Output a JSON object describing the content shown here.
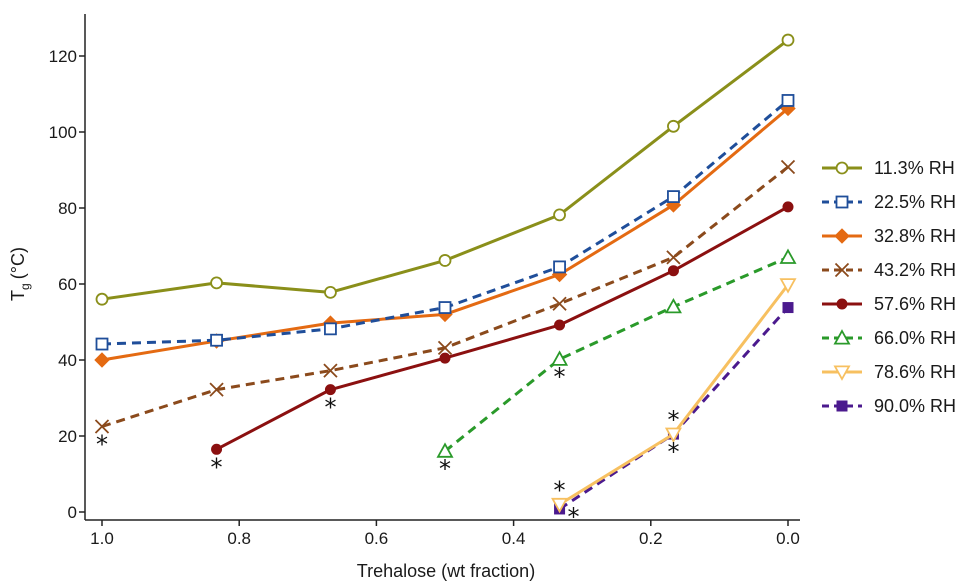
{
  "chart_data": {
    "type": "line",
    "xlabel": "Trehalose (wt fraction)",
    "ylabel": "T",
    "ylabel_subscript": "g",
    "ylabel_units": "(°C)",
    "xlim": [
      1.0,
      0.0
    ],
    "ylim": [
      0,
      130
    ],
    "x_ticks": [
      1.0,
      0.8,
      0.6,
      0.4,
      0.2,
      0.0
    ],
    "x_tick_labels": [
      "1.0",
      "0.8",
      "0.6",
      "0.4",
      "0.2",
      "0.0"
    ],
    "y_ticks": [
      0,
      20,
      40,
      60,
      80,
      100,
      120
    ],
    "y_tick_labels": [
      "0",
      "20",
      "40",
      "60",
      "80",
      "100",
      "120"
    ],
    "grid": false,
    "legend_position": "right",
    "series": [
      {
        "name": "11.3% RH",
        "color": "#8a8f1a",
        "dashed": false,
        "marker": "circle-open",
        "x": [
          1.0,
          0.833,
          0.667,
          0.5,
          0.333,
          0.167,
          0.0
        ],
        "y": [
          56,
          60.3,
          57.8,
          66.2,
          78.2,
          101.5,
          124.2
        ]
      },
      {
        "name": "22.5% RH",
        "color": "#1f4e9a",
        "dashed": true,
        "marker": "square-open",
        "x": [
          1.0,
          0.833,
          0.667,
          0.5,
          0.333,
          0.167,
          0.0
        ],
        "y": [
          44.2,
          45.2,
          48.2,
          53.8,
          64.5,
          83.0,
          108.3
        ]
      },
      {
        "name": "32.8% RH",
        "color": "#e46a12",
        "dashed": false,
        "marker": "diamond-filled",
        "x": [
          1.0,
          0.833,
          0.667,
          0.5,
          0.333,
          0.167,
          0.0
        ],
        "y": [
          40.0,
          45.0,
          49.7,
          52.0,
          62.5,
          80.8,
          106.2
        ]
      },
      {
        "name": "43.2% RH",
        "color": "#8b4a1c",
        "dashed": true,
        "marker": "x",
        "x": [
          1.0,
          0.833,
          0.667,
          0.5,
          0.333,
          0.167,
          0.0
        ],
        "y": [
          22.5,
          32.2,
          37.2,
          43.2,
          54.8,
          67.0,
          90.8
        ]
      },
      {
        "name": "57.6% RH",
        "color": "#8b1010",
        "dashed": false,
        "marker": "circle-filled",
        "x": [
          0.833,
          0.667,
          0.5,
          0.333,
          0.167,
          0.0
        ],
        "y": [
          16.5,
          32.2,
          40.5,
          49.2,
          63.5,
          80.3
        ]
      },
      {
        "name": "66.0% RH",
        "color": "#2a9a2a",
        "dashed": true,
        "marker": "triangle-up-open",
        "x": [
          0.5,
          0.333,
          0.167,
          0.0
        ],
        "y": [
          16.0,
          40.2,
          54.0,
          67.0
        ]
      },
      {
        "name": "78.6% RH",
        "color": "#f7c060",
        "dashed": false,
        "marker": "triangle-down-open",
        "x": [
          0.333,
          0.167,
          0.0
        ],
        "y": [
          2.0,
          20.5,
          59.8
        ]
      },
      {
        "name": "90.0% RH",
        "color": "#4b1a8e",
        "dashed": true,
        "marker": "square-filled",
        "x": [
          0.333,
          0.167,
          0.0
        ],
        "y": [
          0.8,
          20.5,
          53.8
        ]
      }
    ],
    "annotations": [
      {
        "text": "*",
        "x": 1.0,
        "y": 22.5,
        "place": "below"
      },
      {
        "text": "*",
        "x": 0.833,
        "y": 16.5,
        "place": "below"
      },
      {
        "text": "*",
        "x": 0.667,
        "y": 32.2,
        "place": "below"
      },
      {
        "text": "*",
        "x": 0.5,
        "y": 16.0,
        "place": "below"
      },
      {
        "text": "*",
        "x": 0.333,
        "y": 40.2,
        "place": "below"
      },
      {
        "text": "*",
        "x": 0.333,
        "y": 2.0,
        "place": "above"
      },
      {
        "text": "*",
        "x": 0.333,
        "y": 0.8,
        "place": "right-below"
      },
      {
        "text": "*",
        "x": 0.167,
        "y": 20.5,
        "place": "above"
      },
      {
        "text": "*",
        "x": 0.167,
        "y": 20.5,
        "place": "below"
      }
    ]
  }
}
